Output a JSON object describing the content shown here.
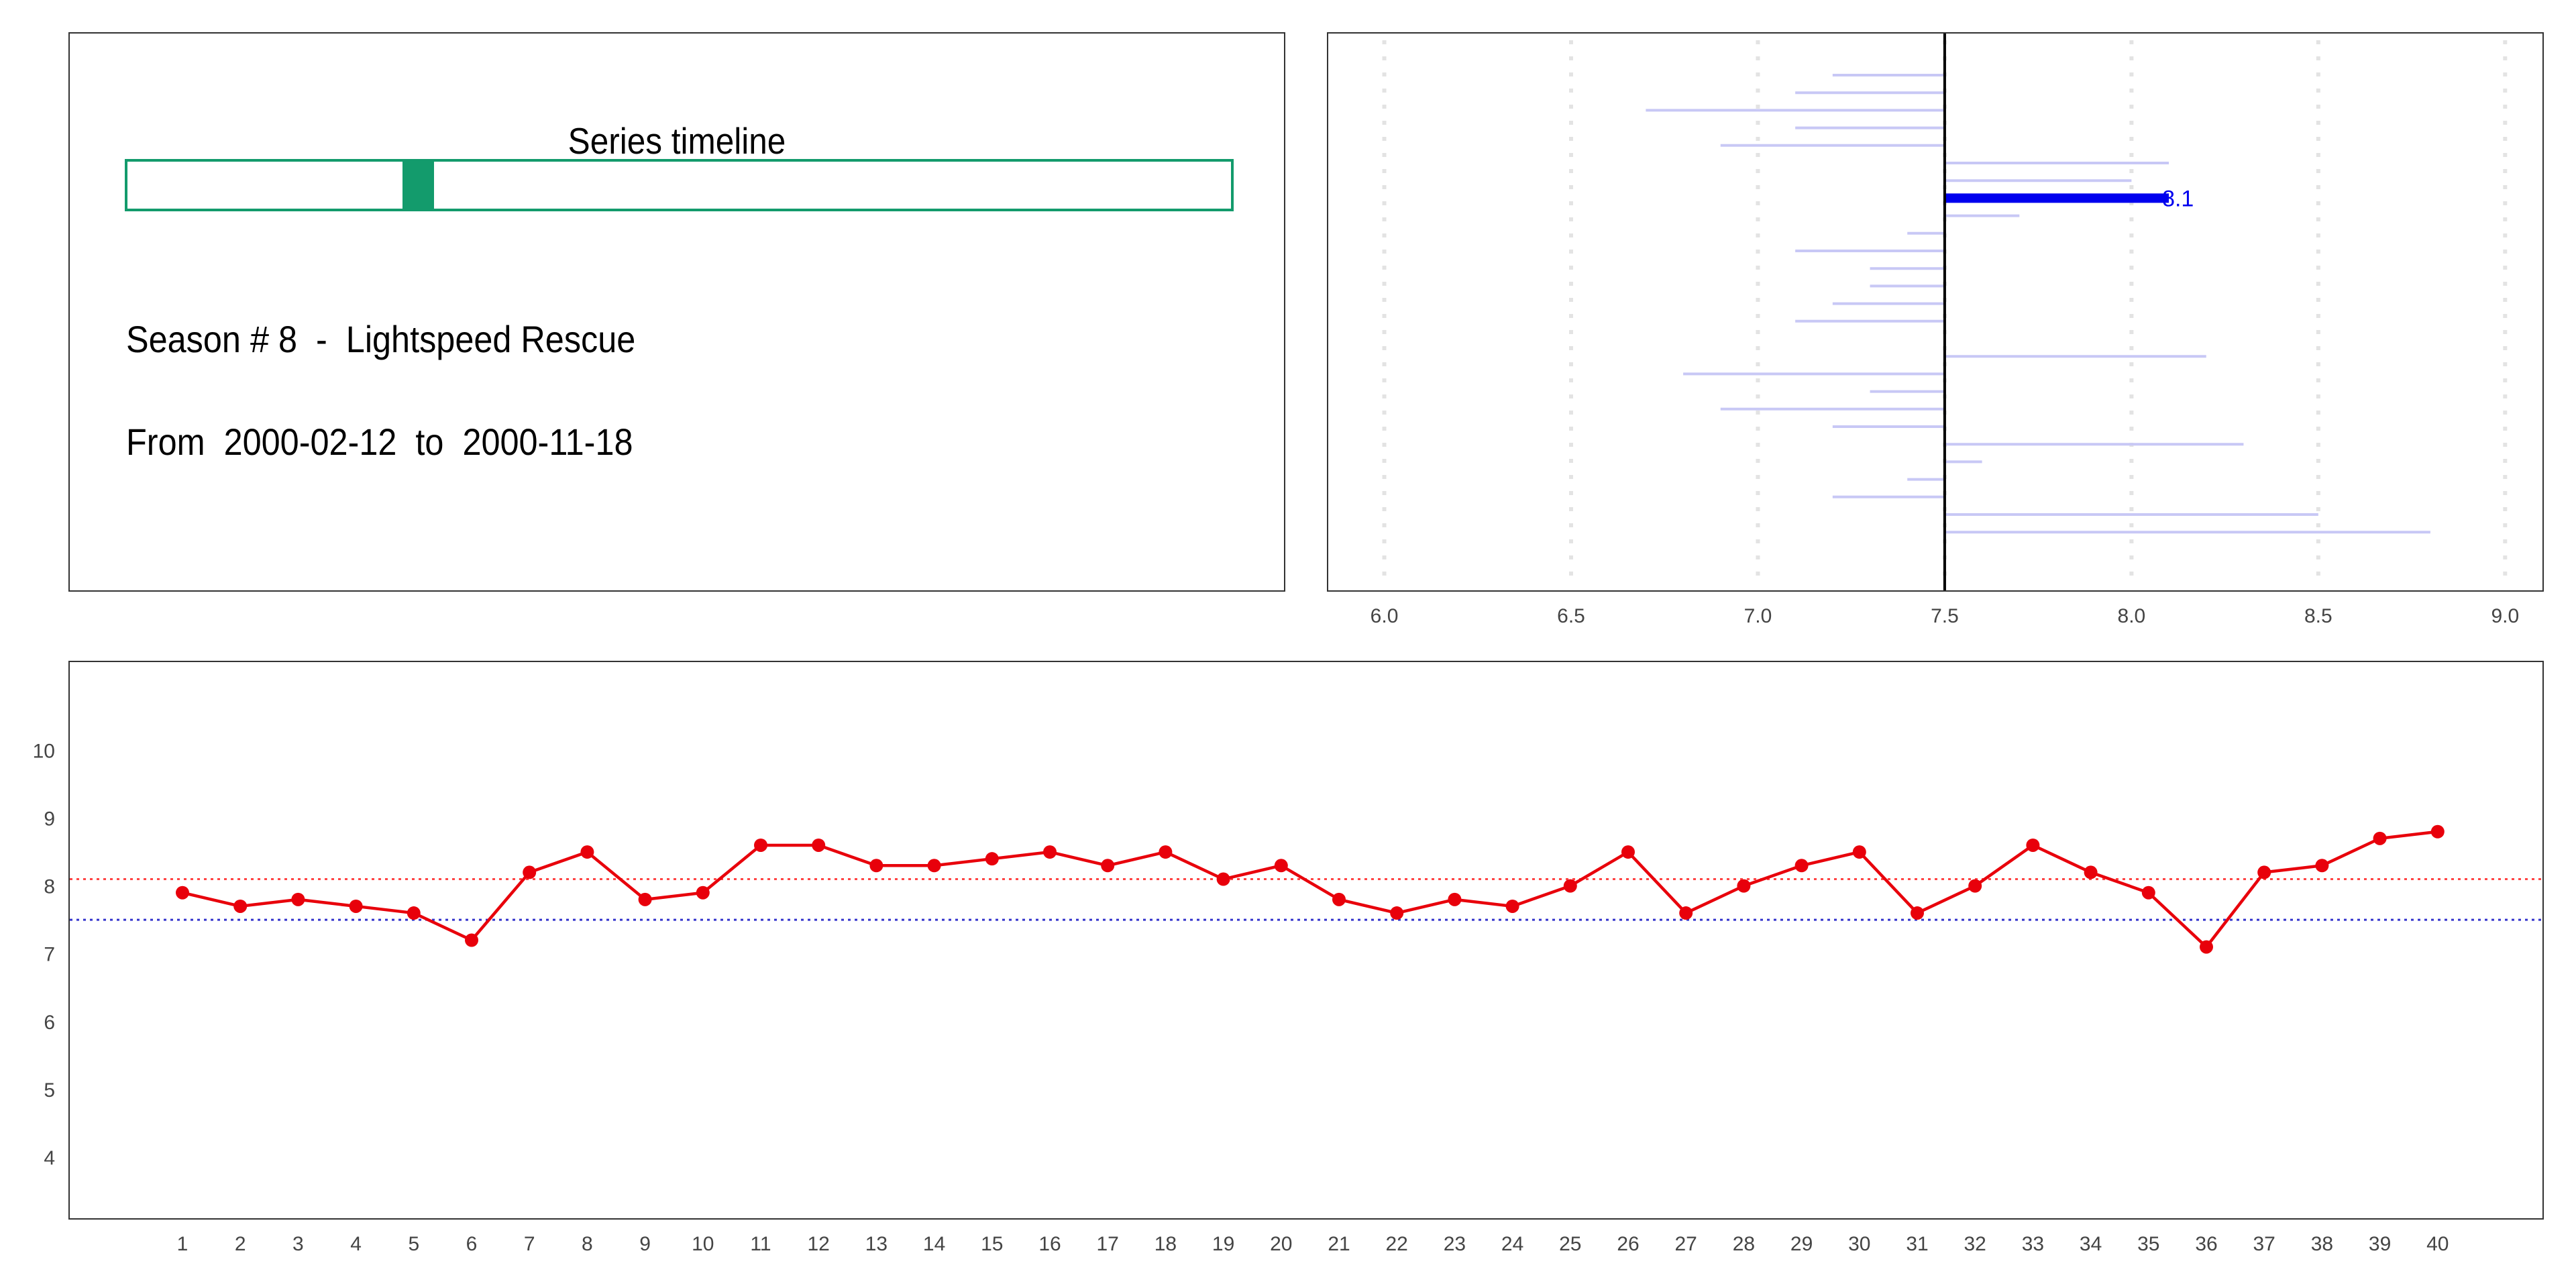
{
  "timeline": {
    "title": "Series timeline",
    "current_position": 0.249,
    "marker_width": 0.029
  },
  "info": {
    "season_label": "Season # 8  -  Lightspeed Rescue",
    "date_label": "From  2000-02-12  to  2000-11-18"
  },
  "colors": {
    "timeline_accent": "#139b6c",
    "episode_line": "#e8000b",
    "season_mean_line": "#ff4444",
    "overall_mean_line": "#3333cc",
    "bar_highlight": "#0000ee",
    "bar_faded": "#c8c8f5"
  },
  "chart_data": [
    {
      "type": "bar",
      "orientation": "horizontal",
      "baseline": 7.5,
      "xlim": [
        5.85,
        9.1
      ],
      "xticks": [
        "6.0",
        "6.5",
        "7.0",
        "7.5",
        "8.0",
        "8.5",
        "9.0"
      ],
      "grid": "vertical dotted",
      "highlight_index": 7,
      "highlight_label": "8.1",
      "values": [
        7.2,
        7.1,
        6.7,
        7.1,
        6.9,
        8.1,
        8.0,
        8.1,
        7.7,
        7.4,
        7.1,
        7.3,
        7.3,
        7.2,
        7.1,
        7.5,
        8.2,
        6.8,
        7.3,
        6.9,
        7.2,
        8.3,
        7.6,
        7.4,
        7.2,
        8.5,
        8.8
      ]
    },
    {
      "type": "line",
      "x": [
        1,
        2,
        3,
        4,
        5,
        6,
        7,
        8,
        9,
        10,
        11,
        12,
        13,
        14,
        15,
        16,
        17,
        18,
        19,
        20,
        21,
        22,
        23,
        24,
        25,
        26,
        27,
        28,
        29,
        30,
        31,
        32,
        33,
        34,
        35,
        36,
        37,
        38,
        39,
        40
      ],
      "y": [
        7.9,
        7.7,
        7.8,
        7.7,
        7.6,
        7.2,
        8.2,
        8.5,
        7.8,
        7.9,
        8.6,
        8.6,
        8.3,
        8.3,
        8.4,
        8.5,
        8.3,
        8.5,
        8.1,
        8.3,
        7.8,
        7.6,
        7.8,
        7.7,
        8.0,
        8.5,
        7.6,
        8.0,
        8.3,
        8.5,
        7.6,
        8.0,
        8.6,
        8.2,
        7.9,
        7.1,
        8.2,
        8.3,
        8.7,
        8.8
      ],
      "ylim": [
        3.1,
        11.3
      ],
      "yticks": [
        4,
        5,
        6,
        7,
        8,
        9,
        10
      ],
      "reference_lines": [
        {
          "value": 8.1,
          "color": "#ff4444",
          "style": "dotted"
        },
        {
          "value": 7.5,
          "color": "#3333cc",
          "style": "dotted"
        }
      ]
    }
  ]
}
